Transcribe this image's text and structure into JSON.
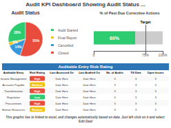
{
  "title": "Audit KPI Dashboard Showing Audit Status ...",
  "footnote": "This graphic has to linked to excel, and changes automatically based on data. Just left click on it and select 'Edit Data'",
  "chart_data": [
    {
      "type": "pie",
      "title": "Audit Status",
      "categories": [
        "Audit Started",
        "Final Report",
        "Cancelled",
        "Closed"
      ],
      "values": [
        28,
        3,
        14,
        55
      ],
      "value_labels": [
        "28%",
        "3%",
        "14%",
        "55%"
      ],
      "colors": [
        "#2ecc71",
        "#f1c40f",
        "#3498db",
        "#e74c3c"
      ],
      "data_labels": true,
      "legend": "right"
    },
    {
      "type": "bar",
      "title": "% of Past Due Corrective Actions",
      "orientation": "horizontal",
      "categories": [
        null
      ],
      "series": [
        {
          "color": "#cccccc",
          "values": [
            100
          ]
        },
        {
          "color": "#2ecc71",
          "values": [
            60
          ],
          "value_labels": [
            "60%"
          ],
          "data_labels": true
        }
      ],
      "xlim": [
        0,
        100
      ],
      "xticks": [
        0,
        {
          "value": 75,
          "label": "75%"
        },
        {
          "value": 100,
          "label": "100%"
        }
      ],
      "annotations": [
        {
          "text": "Target",
          "x": 75,
          "color": "#c0392b"
        }
      ],
      "grid": false,
      "tick_labels": "x"
    },
    {
      "type": "table",
      "title": "Auditable Entry Risk Rating",
      "color": "#2e75b6",
      "columns": [
        "Auditable Entry",
        "Risk Rating",
        "Last Assessed On",
        "Last Audited On",
        "No. of Audits",
        "Till Date",
        "Open Issues"
      ],
      "rows": [
        [
          "Income Management",
          "High",
          "Date Here",
          "Date Here",
          "3",
          "3",
          "3"
        ],
        [
          "Accounts Payable",
          "Medium",
          "Date Here",
          "Date Here",
          "3",
          "3",
          "3"
        ],
        [
          "Transformation",
          "High",
          "Date Here",
          "Date Here",
          "3",
          "3",
          "3"
        ],
        [
          "Regulation",
          "Low",
          "Date Here",
          "Date Here",
          "3",
          "3",
          "3"
        ],
        [
          "Procurement",
          "High",
          "Date Here",
          "Date Here",
          "3",
          "3",
          "3"
        ],
        [
          "Human Resources",
          "Medium",
          "Date Here",
          "Date Here",
          "3",
          "3",
          "3"
        ]
      ],
      "colors": [
        "#e74c3c",
        "#f1c40f",
        "#e74c3c",
        "#2ecc71",
        "#e74c3c",
        "#f1c40f"
      ]
    }
  ]
}
